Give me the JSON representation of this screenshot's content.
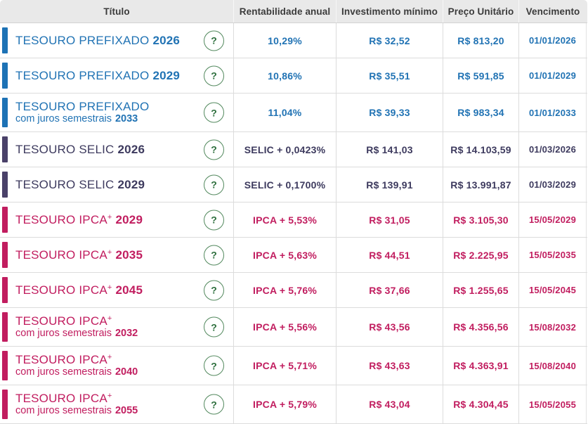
{
  "table": {
    "columns": [
      "Título",
      "Rentabilidade anual",
      "Investimento mínimo",
      "Preço Unitário",
      "Vencimento"
    ],
    "help_icon_glyph": "?",
    "rows": [
      {
        "theme": "prefixado",
        "title": {
          "line1": "TESOURO PREFIXADO",
          "line1_sup": "",
          "line1_year": "2026",
          "line2": "",
          "line2_year": ""
        },
        "rentability": "10,29%",
        "min_investment": "R$ 32,52",
        "unit_price": "R$ 813,20",
        "maturity": "01/01/2026"
      },
      {
        "theme": "prefixado",
        "title": {
          "line1": "TESOURO PREFIXADO",
          "line1_sup": "",
          "line1_year": "2029",
          "line2": "",
          "line2_year": ""
        },
        "rentability": "10,86%",
        "min_investment": "R$ 35,51",
        "unit_price": "R$ 591,85",
        "maturity": "01/01/2029"
      },
      {
        "theme": "prefixado",
        "title": {
          "line1": "TESOURO PREFIXADO",
          "line1_sup": "",
          "line1_year": "",
          "line2": "com juros semestrais",
          "line2_year": "2033"
        },
        "rentability": "11,04%",
        "min_investment": "R$ 39,33",
        "unit_price": "R$ 983,34",
        "maturity": "01/01/2033"
      },
      {
        "theme": "selic",
        "title": {
          "line1": "TESOURO SELIC",
          "line1_sup": "",
          "line1_year": "2026",
          "line2": "",
          "line2_year": ""
        },
        "rentability": "SELIC + 0,0423%",
        "min_investment": "R$ 141,03",
        "unit_price": "R$ 14.103,59",
        "maturity": "01/03/2026"
      },
      {
        "theme": "selic",
        "title": {
          "line1": "TESOURO SELIC",
          "line1_sup": "",
          "line1_year": "2029",
          "line2": "",
          "line2_year": ""
        },
        "rentability": "SELIC + 0,1700%",
        "min_investment": "R$ 139,91",
        "unit_price": "R$ 13.991,87",
        "maturity": "01/03/2029"
      },
      {
        "theme": "ipca",
        "title": {
          "line1": "TESOURO IPCA",
          "line1_sup": "+",
          "line1_year": "2029",
          "line2": "",
          "line2_year": ""
        },
        "rentability": "IPCA + 5,53%",
        "min_investment": "R$ 31,05",
        "unit_price": "R$ 3.105,30",
        "maturity": "15/05/2029"
      },
      {
        "theme": "ipca",
        "title": {
          "line1": "TESOURO IPCA",
          "line1_sup": "+",
          "line1_year": "2035",
          "line2": "",
          "line2_year": ""
        },
        "rentability": "IPCA + 5,63%",
        "min_investment": "R$ 44,51",
        "unit_price": "R$ 2.225,95",
        "maturity": "15/05/2035"
      },
      {
        "theme": "ipca",
        "title": {
          "line1": "TESOURO IPCA",
          "line1_sup": "+",
          "line1_year": "2045",
          "line2": "",
          "line2_year": ""
        },
        "rentability": "IPCA + 5,76%",
        "min_investment": "R$ 37,66",
        "unit_price": "R$ 1.255,65",
        "maturity": "15/05/2045"
      },
      {
        "theme": "ipca",
        "title": {
          "line1": "TESOURO IPCA",
          "line1_sup": "+",
          "line1_year": "",
          "line2": "com juros semestrais",
          "line2_year": "2032"
        },
        "rentability": "IPCA + 5,56%",
        "min_investment": "R$ 43,56",
        "unit_price": "R$ 4.356,56",
        "maturity": "15/08/2032"
      },
      {
        "theme": "ipca",
        "title": {
          "line1": "TESOURO IPCA",
          "line1_sup": "+",
          "line1_year": "",
          "line2": "com juros semestrais",
          "line2_year": "2040"
        },
        "rentability": "IPCA + 5,71%",
        "min_investment": "R$ 43,63",
        "unit_price": "R$ 4.363,91",
        "maturity": "15/08/2040"
      },
      {
        "theme": "ipca",
        "title": {
          "line1": "TESOURO IPCA",
          "line1_sup": "+",
          "line1_year": "",
          "line2": "com juros semestrais",
          "line2_year": "2055"
        },
        "rentability": "IPCA + 5,79%",
        "min_investment": "R$ 43,04",
        "unit_price": "R$ 4.304,45",
        "maturity": "15/05/2055"
      }
    ]
  },
  "colors": {
    "header_bg": "#e9e9e9",
    "header_text": "#3b3b3b",
    "row_separator": "#dcdcdc",
    "prefixado": "#2173b4",
    "selic": "#3d3a5e",
    "ipca": "#c11d5f",
    "help_circle": "#53895e"
  }
}
